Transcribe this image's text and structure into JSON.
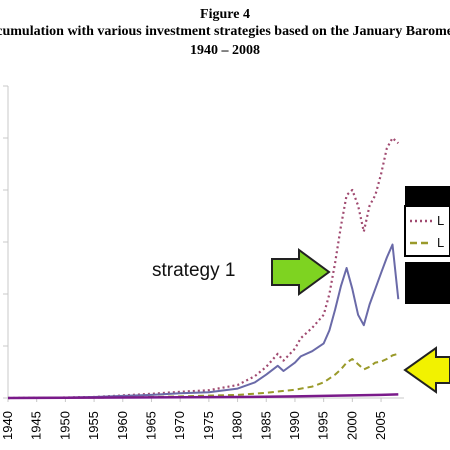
{
  "figure": {
    "label": "Figure 4",
    "title": "Accumulation with various investment strategies based on the January Barometer",
    "period": "1940 – 2008"
  },
  "annotation": "strategy 1",
  "legend": [
    "L",
    "L"
  ],
  "colors": {
    "series_dotted": "#a04a70",
    "series_solid": "#6a6aa8",
    "series_dashed": "#9a9a2a",
    "series_bottom": "#7a1a8a",
    "arrow_green": "#7ed321",
    "arrow_yellow": "#f2f200",
    "axis": "#c8c8c8"
  },
  "chart_data": {
    "type": "line",
    "title": "Accumulation with various investment strategies based on the January Barometer",
    "subtitle": "1940 – 2008",
    "xlabel": "",
    "ylabel": "",
    "xlim": [
      1940,
      2009
    ],
    "ylim": [
      0,
      6
    ],
    "x_tick_labels": [
      "1940",
      "1945",
      "1950",
      "1955",
      "1960",
      "1965",
      "1970",
      "1975",
      "1980",
      "1985",
      "1990",
      "1995",
      "2000",
      "2005"
    ],
    "grid": false,
    "legend_position": "right",
    "series": [
      {
        "style": "dotted",
        "x": [
          1940,
          1950,
          1955,
          1960,
          1965,
          1970,
          1975,
          1980,
          1983,
          1985,
          1987,
          1988,
          1990,
          1991,
          1993,
          1995,
          1996,
          1997,
          1998,
          1999,
          2000,
          2001,
          2002,
          2003,
          2004,
          2005,
          2006,
          2007,
          2008
        ],
        "values": [
          0,
          0.01,
          0.02,
          0.05,
          0.08,
          0.12,
          0.15,
          0.25,
          0.42,
          0.6,
          0.85,
          0.72,
          0.95,
          1.15,
          1.35,
          1.6,
          2.0,
          2.6,
          3.3,
          3.9,
          4.0,
          3.7,
          3.2,
          3.7,
          3.9,
          4.3,
          4.8,
          5.0,
          4.9
        ]
      },
      {
        "style": "solid",
        "x": [
          1940,
          1950,
          1955,
          1960,
          1965,
          1970,
          1975,
          1980,
          1983,
          1985,
          1987,
          1988,
          1990,
          1991,
          1993,
          1995,
          1996,
          1997,
          1998,
          1999,
          2000,
          2001,
          2002,
          2003,
          2004,
          2005,
          2006,
          2007,
          2008
        ],
        "values": [
          0,
          0.01,
          0.02,
          0.04,
          0.06,
          0.09,
          0.11,
          0.18,
          0.3,
          0.45,
          0.62,
          0.52,
          0.68,
          0.8,
          0.9,
          1.05,
          1.3,
          1.7,
          2.15,
          2.5,
          2.1,
          1.6,
          1.4,
          1.8,
          2.1,
          2.4,
          2.7,
          2.95,
          1.9
        ]
      },
      {
        "style": "dashed",
        "x": [
          1940,
          1950,
          1960,
          1970,
          1980,
          1985,
          1990,
          1993,
          1995,
          1997,
          1998,
          1999,
          2000,
          2001,
          2002,
          2003,
          2004,
          2005,
          2006,
          2007,
          2008
        ],
        "values": [
          0,
          0.005,
          0.01,
          0.03,
          0.06,
          0.1,
          0.16,
          0.22,
          0.3,
          0.45,
          0.55,
          0.68,
          0.75,
          0.65,
          0.55,
          0.6,
          0.68,
          0.7,
          0.75,
          0.82,
          0.85
        ]
      },
      {
        "style": "solid-bottom",
        "x": [
          1940,
          1960,
          1980,
          1990,
          2000,
          2005,
          2008
        ],
        "values": [
          0,
          0.01,
          0.02,
          0.03,
          0.05,
          0.06,
          0.07
        ]
      }
    ]
  }
}
